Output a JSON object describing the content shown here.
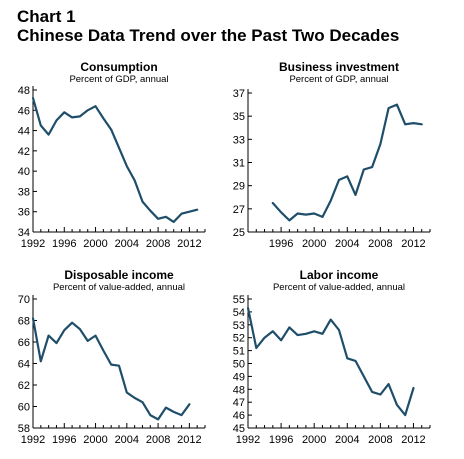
{
  "header": {
    "title_line1": "Chart 1",
    "title_line2": "Chinese Data Trend over the Past Two Decades"
  },
  "colors": {
    "series": "#1f4e6b",
    "axis": "#000000"
  },
  "chart_data": [
    {
      "type": "line",
      "title": "Consumption",
      "subtitle": "Percent of GDP, annual",
      "xlim": [
        1992,
        2014
      ],
      "ylim": [
        34,
        48
      ],
      "xticks": [
        1992,
        1996,
        2000,
        2004,
        2008,
        2012
      ],
      "yticks": [
        34,
        36,
        38,
        40,
        42,
        44,
        46,
        48
      ],
      "x": [
        1992,
        1993,
        1994,
        1995,
        1996,
        1997,
        1998,
        1999,
        2000,
        2001,
        2002,
        2003,
        2004,
        2005,
        2006,
        2007,
        2008,
        2009,
        2010,
        2011,
        2012,
        2013
      ],
      "y": [
        47.2,
        44.5,
        43.6,
        45.0,
        45.8,
        45.3,
        45.4,
        46.0,
        46.4,
        45.2,
        44.1,
        42.3,
        40.5,
        39.1,
        37.0,
        36.1,
        35.3,
        35.5,
        35.0,
        35.8,
        36.0,
        36.2
      ]
    },
    {
      "type": "line",
      "title": "Business investment",
      "subtitle": "Percent of GDP, annual",
      "xlim": [
        1992,
        2014
      ],
      "ylim": [
        25,
        37
      ],
      "xticks": [
        1996,
        2000,
        2004,
        2008,
        2012
      ],
      "yticks": [
        25,
        27,
        29,
        31,
        33,
        35,
        37
      ],
      "x": [
        1995,
        1996,
        1997,
        1998,
        1999,
        2000,
        2001,
        2002,
        2003,
        2004,
        2005,
        2006,
        2007,
        2008,
        2009,
        2010,
        2011,
        2012,
        2013
      ],
      "y": [
        27.5,
        26.7,
        26.0,
        26.6,
        26.5,
        26.6,
        26.3,
        27.7,
        29.5,
        29.8,
        28.2,
        30.4,
        30.6,
        32.6,
        35.7,
        36.0,
        34.3,
        34.4,
        34.3
      ]
    },
    {
      "type": "line",
      "title": "Disposable income",
      "subtitle": "Percent of value-added, annual",
      "xlim": [
        1992,
        2014
      ],
      "ylim": [
        58,
        70
      ],
      "xticks": [
        1992,
        1996,
        2000,
        2004,
        2008,
        2012
      ],
      "yticks": [
        58,
        60,
        62,
        64,
        66,
        68,
        70
      ],
      "x": [
        1992,
        1993,
        1994,
        1995,
        1996,
        1997,
        1998,
        1999,
        2000,
        2001,
        2002,
        2003,
        2004,
        2005,
        2006,
        2007,
        2008,
        2009,
        2010,
        2011,
        2012
      ],
      "y": [
        68.2,
        64.2,
        66.6,
        65.9,
        67.1,
        67.8,
        67.2,
        66.1,
        66.6,
        65.2,
        63.9,
        63.8,
        61.3,
        60.8,
        60.4,
        59.2,
        58.8,
        59.9,
        59.5,
        59.2,
        60.2
      ]
    },
    {
      "type": "line",
      "title": "Labor income",
      "subtitle": "Percent of value-added, annual",
      "xlim": [
        1992,
        2014
      ],
      "ylim": [
        45,
        55
      ],
      "xticks": [
        1992,
        1996,
        2000,
        2004,
        2008,
        2012
      ],
      "yticks": [
        45,
        46,
        47,
        48,
        49,
        50,
        51,
        52,
        53,
        54,
        55
      ],
      "x": [
        1992,
        1993,
        1994,
        1995,
        1996,
        1997,
        1998,
        1999,
        2000,
        2001,
        2002,
        2003,
        2004,
        2005,
        2006,
        2007,
        2008,
        2009,
        2010,
        2011,
        2012
      ],
      "y": [
        54.3,
        51.2,
        52.0,
        52.5,
        51.8,
        52.8,
        52.2,
        52.3,
        52.5,
        52.3,
        53.4,
        52.6,
        50.4,
        50.2,
        49.0,
        47.8,
        47.6,
        48.4,
        46.8,
        46.0,
        48.1
      ]
    }
  ]
}
